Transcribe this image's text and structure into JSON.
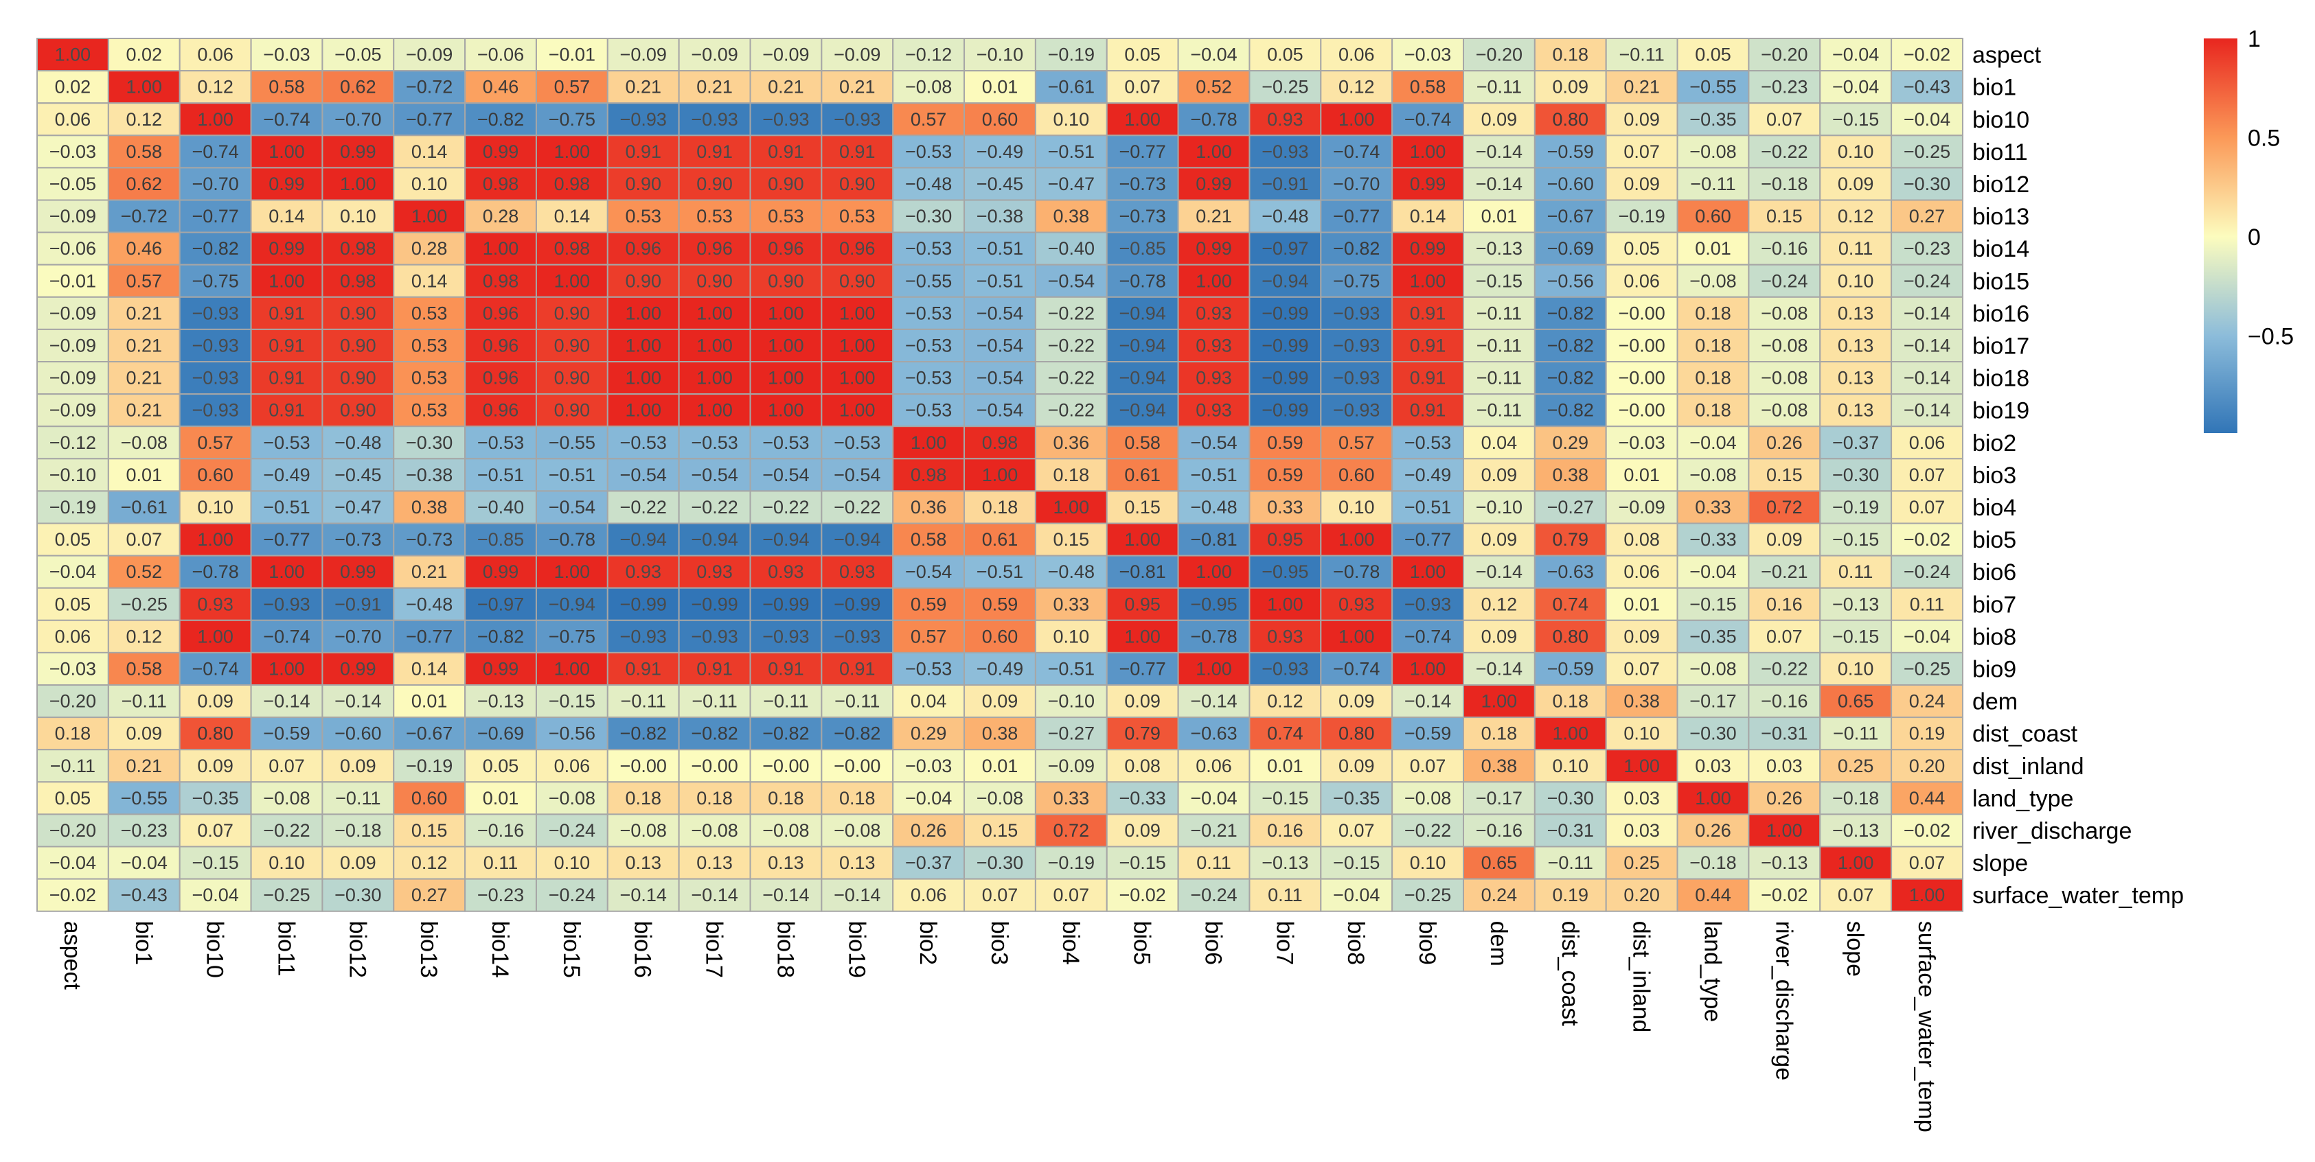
{
  "chart_data": {
    "type": "heatmap",
    "title": "",
    "variables": [
      "aspect",
      "bio1",
      "bio10",
      "bio11",
      "bio12",
      "bio13",
      "bio14",
      "bio15",
      "bio16",
      "bio17",
      "bio18",
      "bio19",
      "bio2",
      "bio3",
      "bio4",
      "bio5",
      "bio6",
      "bio7",
      "bio8",
      "bio9",
      "dem",
      "dist_coast",
      "dist_inland",
      "land_type",
      "river_discharge",
      "slope",
      "surface_water_temp"
    ],
    "values": [
      [
        "1.00",
        "0.02",
        "0.06",
        "−0.03",
        "−0.05",
        "−0.09",
        "−0.06",
        "−0.01",
        "−0.09",
        "−0.09",
        "−0.09",
        "−0.09",
        "−0.12",
        "−0.10",
        "−0.19",
        "0.05",
        "−0.04",
        "0.05",
        "0.06",
        "−0.03",
        "−0.20",
        "0.18",
        "−0.11",
        "0.05",
        "−0.20",
        "−0.04",
        "−0.02"
      ],
      [
        "0.02",
        "1.00",
        "0.12",
        "0.58",
        "0.62",
        "−0.72",
        "0.46",
        "0.57",
        "0.21",
        "0.21",
        "0.21",
        "0.21",
        "−0.08",
        "0.01",
        "−0.61",
        "0.07",
        "0.52",
        "−0.25",
        "0.12",
        "0.58",
        "−0.11",
        "0.09",
        "0.21",
        "−0.55",
        "−0.23",
        "−0.04",
        "−0.43"
      ],
      [
        "0.06",
        "0.12",
        "1.00",
        "−0.74",
        "−0.70",
        "−0.77",
        "−0.82",
        "−0.75",
        "−0.93",
        "−0.93",
        "−0.93",
        "−0.93",
        "0.57",
        "0.60",
        "0.10",
        "1.00",
        "−0.78",
        "0.93",
        "1.00",
        "−0.74",
        "0.09",
        "0.80",
        "0.09",
        "−0.35",
        "0.07",
        "−0.15",
        "−0.04"
      ],
      [
        "−0.03",
        "0.58",
        "−0.74",
        "1.00",
        "0.99",
        "0.14",
        "0.99",
        "1.00",
        "0.91",
        "0.91",
        "0.91",
        "0.91",
        "−0.53",
        "−0.49",
        "−0.51",
        "−0.77",
        "1.00",
        "−0.93",
        "−0.74",
        "1.00",
        "−0.14",
        "−0.59",
        "0.07",
        "−0.08",
        "−0.22",
        "0.10",
        "−0.25"
      ],
      [
        "−0.05",
        "0.62",
        "−0.70",
        "0.99",
        "1.00",
        "0.10",
        "0.98",
        "0.98",
        "0.90",
        "0.90",
        "0.90",
        "0.90",
        "−0.48",
        "−0.45",
        "−0.47",
        "−0.73",
        "0.99",
        "−0.91",
        "−0.70",
        "0.99",
        "−0.14",
        "−0.60",
        "0.09",
        "−0.11",
        "−0.18",
        "0.09",
        "−0.30"
      ],
      [
        "−0.09",
        "−0.72",
        "−0.77",
        "0.14",
        "0.10",
        "1.00",
        "0.28",
        "0.14",
        "0.53",
        "0.53",
        "0.53",
        "0.53",
        "−0.30",
        "−0.38",
        "0.38",
        "−0.73",
        "0.21",
        "−0.48",
        "−0.77",
        "0.14",
        "0.01",
        "−0.67",
        "−0.19",
        "0.60",
        "0.15",
        "0.12",
        "0.27"
      ],
      [
        "−0.06",
        "0.46",
        "−0.82",
        "0.99",
        "0.98",
        "0.28",
        "1.00",
        "0.98",
        "0.96",
        "0.96",
        "0.96",
        "0.96",
        "−0.53",
        "−0.51",
        "−0.40",
        "−0.85",
        "0.99",
        "−0.97",
        "−0.82",
        "0.99",
        "−0.13",
        "−0.69",
        "0.05",
        "0.01",
        "−0.16",
        "0.11",
        "−0.23"
      ],
      [
        "−0.01",
        "0.57",
        "−0.75",
        "1.00",
        "0.98",
        "0.14",
        "0.98",
        "1.00",
        "0.90",
        "0.90",
        "0.90",
        "0.90",
        "−0.55",
        "−0.51",
        "−0.54",
        "−0.78",
        "1.00",
        "−0.94",
        "−0.75",
        "1.00",
        "−0.15",
        "−0.56",
        "0.06",
        "−0.08",
        "−0.24",
        "0.10",
        "−0.24"
      ],
      [
        "−0.09",
        "0.21",
        "−0.93",
        "0.91",
        "0.90",
        "0.53",
        "0.96",
        "0.90",
        "1.00",
        "1.00",
        "1.00",
        "1.00",
        "−0.53",
        "−0.54",
        "−0.22",
        "−0.94",
        "0.93",
        "−0.99",
        "−0.93",
        "0.91",
        "−0.11",
        "−0.82",
        "−0.00",
        "0.18",
        "−0.08",
        "0.13",
        "−0.14"
      ],
      [
        "−0.09",
        "0.21",
        "−0.93",
        "0.91",
        "0.90",
        "0.53",
        "0.96",
        "0.90",
        "1.00",
        "1.00",
        "1.00",
        "1.00",
        "−0.53",
        "−0.54",
        "−0.22",
        "−0.94",
        "0.93",
        "−0.99",
        "−0.93",
        "0.91",
        "−0.11",
        "−0.82",
        "−0.00",
        "0.18",
        "−0.08",
        "0.13",
        "−0.14"
      ],
      [
        "−0.09",
        "0.21",
        "−0.93",
        "0.91",
        "0.90",
        "0.53",
        "0.96",
        "0.90",
        "1.00",
        "1.00",
        "1.00",
        "1.00",
        "−0.53",
        "−0.54",
        "−0.22",
        "−0.94",
        "0.93",
        "−0.99",
        "−0.93",
        "0.91",
        "−0.11",
        "−0.82",
        "−0.00",
        "0.18",
        "−0.08",
        "0.13",
        "−0.14"
      ],
      [
        "−0.09",
        "0.21",
        "−0.93",
        "0.91",
        "0.90",
        "0.53",
        "0.96",
        "0.90",
        "1.00",
        "1.00",
        "1.00",
        "1.00",
        "−0.53",
        "−0.54",
        "−0.22",
        "−0.94",
        "0.93",
        "−0.99",
        "−0.93",
        "0.91",
        "−0.11",
        "−0.82",
        "−0.00",
        "0.18",
        "−0.08",
        "0.13",
        "−0.14"
      ],
      [
        "−0.12",
        "−0.08",
        "0.57",
        "−0.53",
        "−0.48",
        "−0.30",
        "−0.53",
        "−0.55",
        "−0.53",
        "−0.53",
        "−0.53",
        "−0.53",
        "1.00",
        "0.98",
        "0.36",
        "0.58",
        "−0.54",
        "0.59",
        "0.57",
        "−0.53",
        "0.04",
        "0.29",
        "−0.03",
        "−0.04",
        "0.26",
        "−0.37",
        "0.06"
      ],
      [
        "−0.10",
        "0.01",
        "0.60",
        "−0.49",
        "−0.45",
        "−0.38",
        "−0.51",
        "−0.51",
        "−0.54",
        "−0.54",
        "−0.54",
        "−0.54",
        "0.98",
        "1.00",
        "0.18",
        "0.61",
        "−0.51",
        "0.59",
        "0.60",
        "−0.49",
        "0.09",
        "0.38",
        "0.01",
        "−0.08",
        "0.15",
        "−0.30",
        "0.07"
      ],
      [
        "−0.19",
        "−0.61",
        "0.10",
        "−0.51",
        "−0.47",
        "0.38",
        "−0.40",
        "−0.54",
        "−0.22",
        "−0.22",
        "−0.22",
        "−0.22",
        "0.36",
        "0.18",
        "1.00",
        "0.15",
        "−0.48",
        "0.33",
        "0.10",
        "−0.51",
        "−0.10",
        "−0.27",
        "−0.09",
        "0.33",
        "0.72",
        "−0.19",
        "0.07"
      ],
      [
        "0.05",
        "0.07",
        "1.00",
        "−0.77",
        "−0.73",
        "−0.73",
        "−0.85",
        "−0.78",
        "−0.94",
        "−0.94",
        "−0.94",
        "−0.94",
        "0.58",
        "0.61",
        "0.15",
        "1.00",
        "−0.81",
        "0.95",
        "1.00",
        "−0.77",
        "0.09",
        "0.79",
        "0.08",
        "−0.33",
        "0.09",
        "−0.15",
        "−0.02"
      ],
      [
        "−0.04",
        "0.52",
        "−0.78",
        "1.00",
        "0.99",
        "0.21",
        "0.99",
        "1.00",
        "0.93",
        "0.93",
        "0.93",
        "0.93",
        "−0.54",
        "−0.51",
        "−0.48",
        "−0.81",
        "1.00",
        "−0.95",
        "−0.78",
        "1.00",
        "−0.14",
        "−0.63",
        "0.06",
        "−0.04",
        "−0.21",
        "0.11",
        "−0.24"
      ],
      [
        "0.05",
        "−0.25",
        "0.93",
        "−0.93",
        "−0.91",
        "−0.48",
        "−0.97",
        "−0.94",
        "−0.99",
        "−0.99",
        "−0.99",
        "−0.99",
        "0.59",
        "0.59",
        "0.33",
        "0.95",
        "−0.95",
        "1.00",
        "0.93",
        "−0.93",
        "0.12",
        "0.74",
        "0.01",
        "−0.15",
        "0.16",
        "−0.13",
        "0.11"
      ],
      [
        "0.06",
        "0.12",
        "1.00",
        "−0.74",
        "−0.70",
        "−0.77",
        "−0.82",
        "−0.75",
        "−0.93",
        "−0.93",
        "−0.93",
        "−0.93",
        "0.57",
        "0.60",
        "0.10",
        "1.00",
        "−0.78",
        "0.93",
        "1.00",
        "−0.74",
        "0.09",
        "0.80",
        "0.09",
        "−0.35",
        "0.07",
        "−0.15",
        "−0.04"
      ],
      [
        "−0.03",
        "0.58",
        "−0.74",
        "1.00",
        "0.99",
        "0.14",
        "0.99",
        "1.00",
        "0.91",
        "0.91",
        "0.91",
        "0.91",
        "−0.53",
        "−0.49",
        "−0.51",
        "−0.77",
        "1.00",
        "−0.93",
        "−0.74",
        "1.00",
        "−0.14",
        "−0.59",
        "0.07",
        "−0.08",
        "−0.22",
        "0.10",
        "−0.25"
      ],
      [
        "−0.20",
        "−0.11",
        "0.09",
        "−0.14",
        "−0.14",
        "0.01",
        "−0.13",
        "−0.15",
        "−0.11",
        "−0.11",
        "−0.11",
        "−0.11",
        "0.04",
        "0.09",
        "−0.10",
        "0.09",
        "−0.14",
        "0.12",
        "0.09",
        "−0.14",
        "1.00",
        "0.18",
        "0.38",
        "−0.17",
        "−0.16",
        "0.65",
        "0.24"
      ],
      [
        "0.18",
        "0.09",
        "0.80",
        "−0.59",
        "−0.60",
        "−0.67",
        "−0.69",
        "−0.56",
        "−0.82",
        "−0.82",
        "−0.82",
        "−0.82",
        "0.29",
        "0.38",
        "−0.27",
        "0.79",
        "−0.63",
        "0.74",
        "0.80",
        "−0.59",
        "0.18",
        "1.00",
        "0.10",
        "−0.30",
        "−0.31",
        "−0.11",
        "0.19"
      ],
      [
        "−0.11",
        "0.21",
        "0.09",
        "0.07",
        "0.09",
        "−0.19",
        "0.05",
        "0.06",
        "−0.00",
        "−0.00",
        "−0.00",
        "−0.00",
        "−0.03",
        "0.01",
        "−0.09",
        "0.08",
        "0.06",
        "0.01",
        "0.09",
        "0.07",
        "0.38",
        "0.10",
        "1.00",
        "0.03",
        "0.03",
        "0.25",
        "0.20"
      ],
      [
        "0.05",
        "−0.55",
        "−0.35",
        "−0.08",
        "−0.11",
        "0.60",
        "0.01",
        "−0.08",
        "0.18",
        "0.18",
        "0.18",
        "0.18",
        "−0.04",
        "−0.08",
        "0.33",
        "−0.33",
        "−0.04",
        "−0.15",
        "−0.35",
        "−0.08",
        "−0.17",
        "−0.30",
        "0.03",
        "1.00",
        "0.26",
        "−0.18",
        "0.44"
      ],
      [
        "−0.20",
        "−0.23",
        "0.07",
        "−0.22",
        "−0.18",
        "0.15",
        "−0.16",
        "−0.24",
        "−0.08",
        "−0.08",
        "−0.08",
        "−0.08",
        "0.26",
        "0.15",
        "0.72",
        "0.09",
        "−0.21",
        "0.16",
        "0.07",
        "−0.22",
        "−0.16",
        "−0.31",
        "0.03",
        "0.26",
        "1.00",
        "−0.13",
        "−0.02"
      ],
      [
        "−0.04",
        "−0.04",
        "−0.15",
        "0.10",
        "0.09",
        "0.12",
        "0.11",
        "0.10",
        "0.13",
        "0.13",
        "0.13",
        "0.13",
        "−0.37",
        "−0.30",
        "−0.19",
        "−0.15",
        "0.11",
        "−0.13",
        "−0.15",
        "0.10",
        "0.65",
        "−0.11",
        "0.25",
        "−0.18",
        "−0.13",
        "1.00",
        "0.07"
      ],
      [
        "−0.02",
        "−0.43",
        "−0.04",
        "−0.25",
        "−0.30",
        "0.27",
        "−0.23",
        "−0.24",
        "−0.14",
        "−0.14",
        "−0.14",
        "−0.14",
        "0.06",
        "0.07",
        "0.07",
        "−0.02",
        "−0.24",
        "0.11",
        "−0.04",
        "−0.25",
        "0.24",
        "0.19",
        "0.20",
        "0.44",
        "−0.02",
        "0.07",
        "1.00"
      ]
    ],
    "value_range": [
      -1,
      1
    ],
    "legend": {
      "ticks": [
        "1",
        "0.5",
        "0",
        "−0.5"
      ],
      "tick_values": [
        1,
        0.5,
        0,
        -0.5
      ],
      "range": [
        -0.99,
        1.0
      ],
      "placement": "top-right"
    },
    "colors": {
      "high": "#e8261f",
      "mid": "#fcfcbe",
      "low": "#2f74b6",
      "grid": "#a6a6a6"
    }
  }
}
